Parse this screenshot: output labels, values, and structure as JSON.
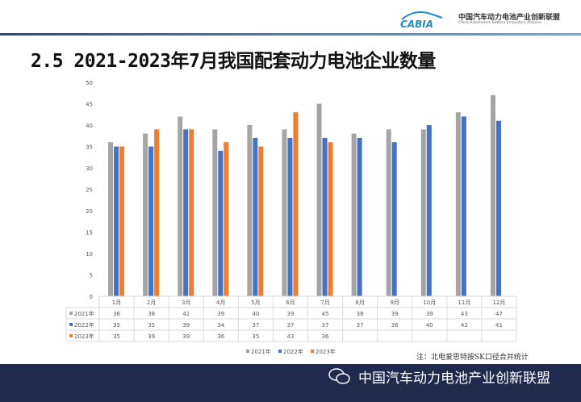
{
  "header": {
    "logo_text": "CABIA",
    "org_cn": "中国汽车动力电池产业创新联盟",
    "org_en": "China Automotive Battery Innovation Alliance"
  },
  "title": "2.5 2021-2023年7月我国配套动力电池企业数量",
  "note": "注：北电爱思特按SK口径合并统计",
  "footer": {
    "text": "中国汽车动力电池产业创新联盟",
    "icon": "wechat-icon"
  },
  "chart_data": {
    "type": "bar",
    "categories": [
      "1月",
      "2月",
      "3月",
      "4月",
      "5月",
      "6月",
      "7月",
      "8月",
      "9月",
      "10月",
      "11月",
      "12月"
    ],
    "series": [
      {
        "name": "2021年",
        "color": "#a5a5a5",
        "values": [
          36,
          38,
          42,
          39,
          40,
          39,
          45,
          38,
          39,
          39,
          43,
          47
        ]
      },
      {
        "name": "2022年",
        "color": "#4472c4",
        "values": [
          35,
          35,
          39,
          34,
          37,
          37,
          37,
          37,
          36,
          40,
          42,
          41
        ]
      },
      {
        "name": "2023年",
        "color": "#ed7d31",
        "values": [
          35,
          39,
          39,
          36,
          35,
          43,
          36,
          null,
          null,
          null,
          null,
          null
        ]
      }
    ],
    "ylim": [
      0,
      50
    ],
    "yticks": [
      0,
      5,
      10,
      15,
      20,
      25,
      30,
      35,
      40,
      45,
      50
    ],
    "grid": false,
    "legend": "bottom",
    "data_table": true
  }
}
